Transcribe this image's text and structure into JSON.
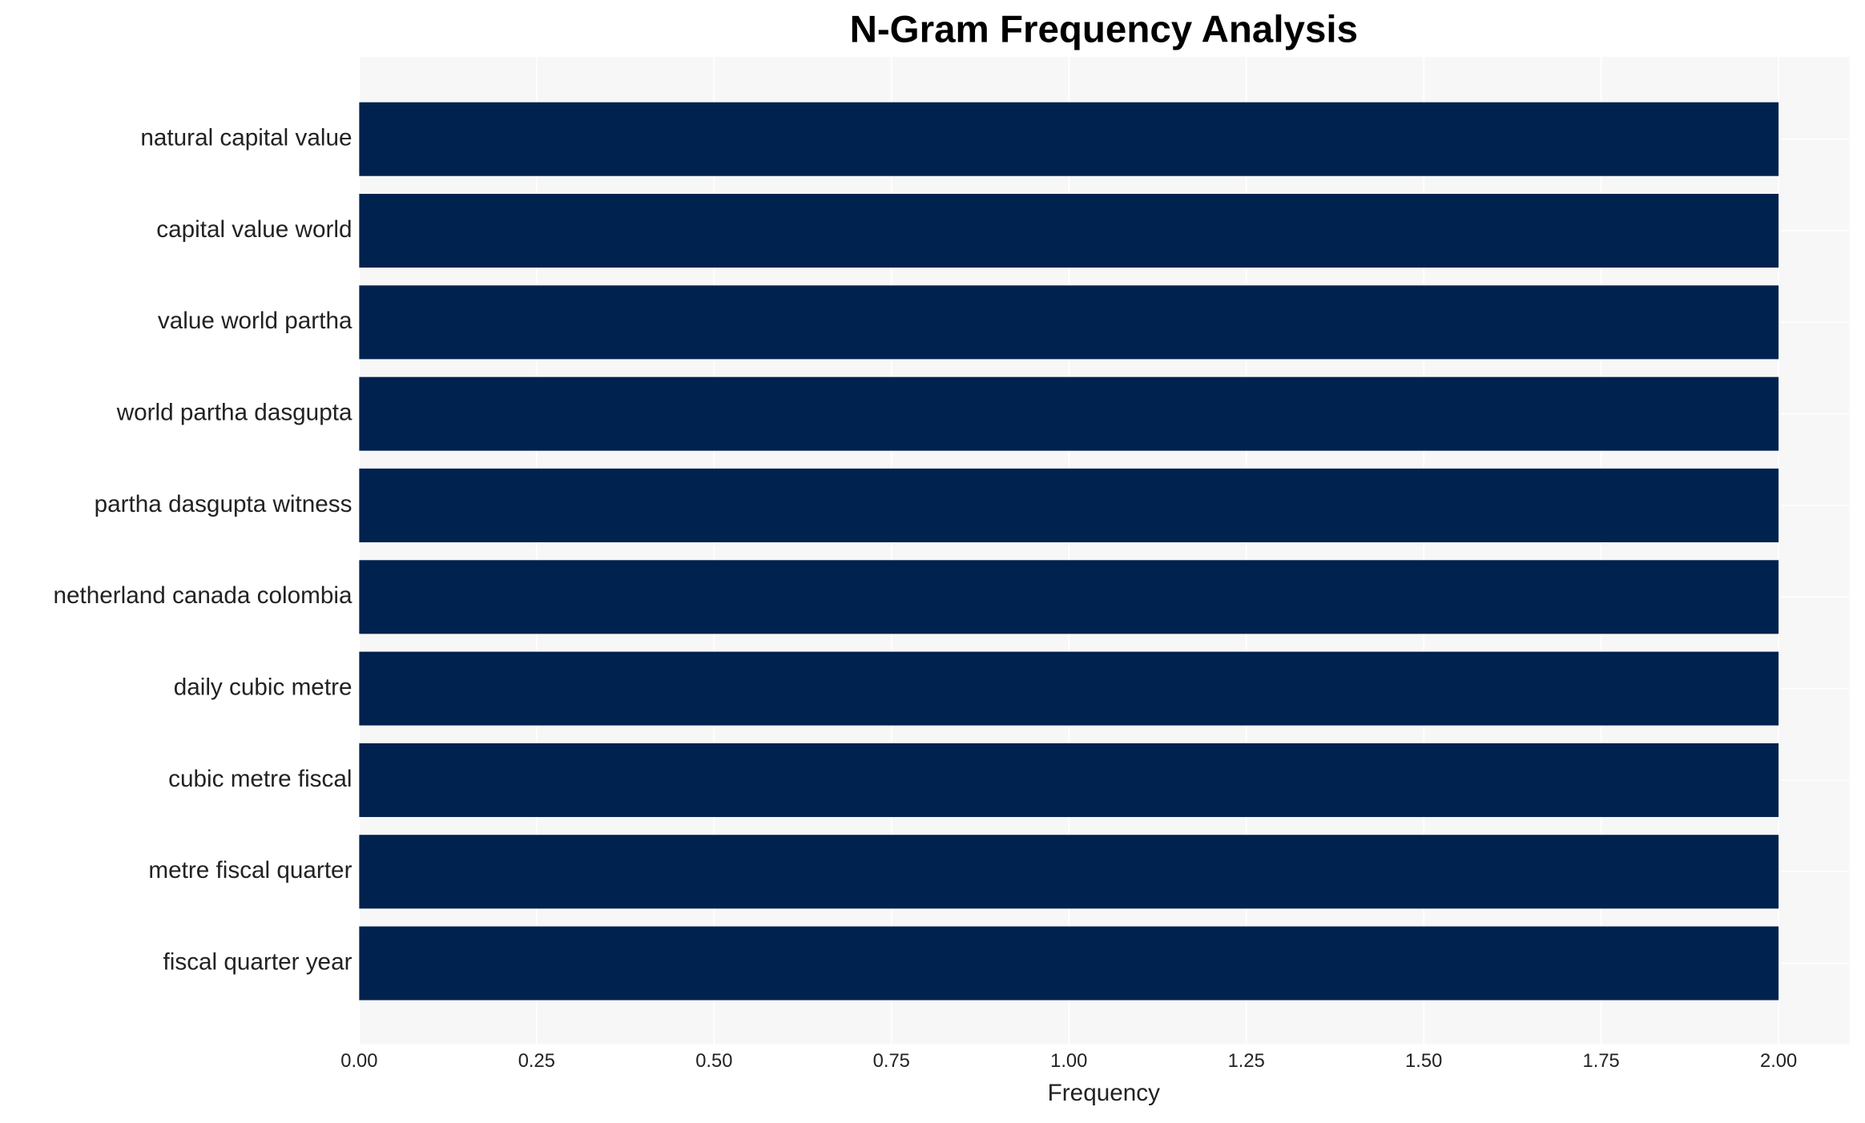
{
  "chart_data": {
    "type": "barh",
    "title": "N-Gram Frequency Analysis",
    "x_label": "Frequency",
    "categories": [
      "natural capital value",
      "capital value world",
      "value world partha",
      "world partha dasgupta",
      "partha dasgupta witness",
      "netherland canada colombia",
      "daily cubic metre",
      "cubic metre fiscal",
      "metre fiscal quarter",
      "fiscal quarter year"
    ],
    "values": [
      2,
      2,
      2,
      2,
      2,
      2,
      2,
      2,
      2,
      2
    ],
    "color": "#00224e",
    "xlim": [
      0,
      2.1
    ],
    "xticks": [
      {
        "value": 0,
        "label": "0.00"
      },
      {
        "value": 0.25,
        "label": "0.25"
      },
      {
        "value": 0.5,
        "label": "0.50"
      },
      {
        "value": 0.75,
        "label": "0.75"
      },
      {
        "value": 1,
        "label": "1.00"
      },
      {
        "value": 1.25,
        "label": "1.25"
      },
      {
        "value": 1.5,
        "label": "1.50"
      },
      {
        "value": 1.75,
        "label": "1.75"
      },
      {
        "value": 2,
        "label": "2.00"
      }
    ],
    "grid": true
  }
}
